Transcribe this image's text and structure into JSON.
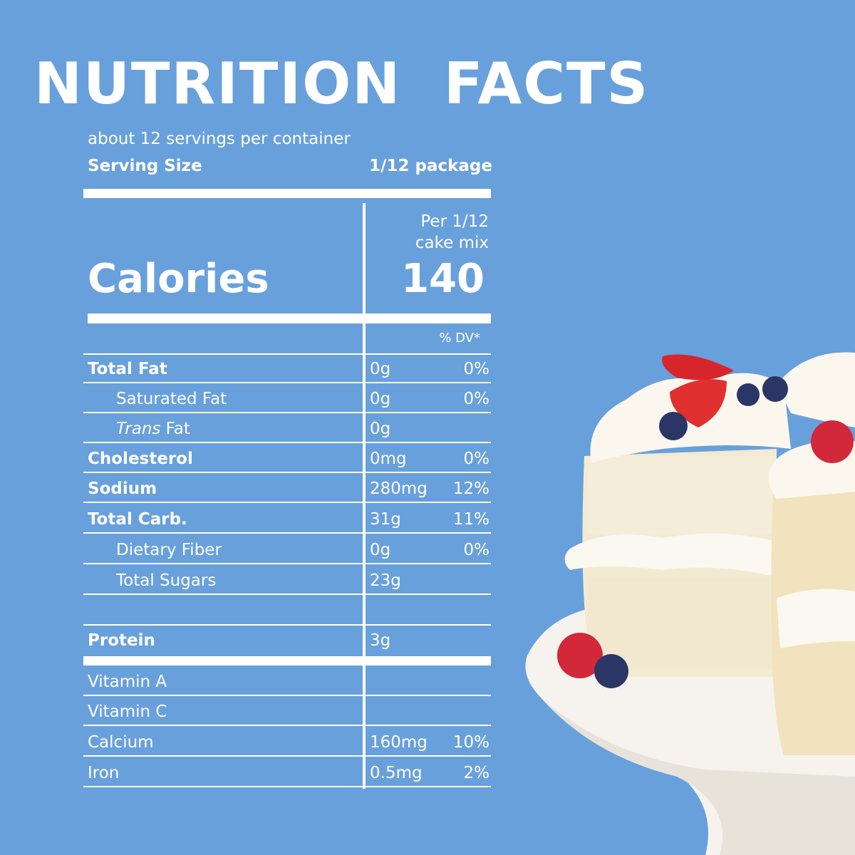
{
  "title": "NUTRITION  FACTS",
  "servings_per_container": "about 12 servings per container",
  "serving_size": {
    "label": "Serving Size",
    "value": "1/12 package"
  },
  "per_label_line1": "Per 1/12",
  "per_label_line2": "cake mix",
  "calories": {
    "label": "Calories",
    "value": "140"
  },
  "dv_header": "% DV*",
  "nutrients": [
    {
      "name": "Total Fat",
      "amount": "0g",
      "dv": "0%",
      "bold": true
    },
    {
      "name": "Saturated Fat",
      "amount": "0g",
      "dv": "0%"
    },
    {
      "name_italic": "Trans",
      "name": " Fat",
      "amount": "0g",
      "dv": ""
    },
    {
      "name": "Cholesterol",
      "amount": "0mg",
      "dv": "0%",
      "bold": true
    },
    {
      "name": "Sodium",
      "amount": "280mg",
      "dv": "12%",
      "bold": true
    },
    {
      "name": "Total Carb.",
      "amount": "31g",
      "dv": "11%",
      "bold": true
    },
    {
      "name": "Dietary Fiber",
      "amount": "0g",
      "dv": "0%"
    },
    {
      "name": "Total Sugars",
      "amount": "23g",
      "dv": ""
    },
    {
      "name": "Protein",
      "amount": "3g",
      "dv": "",
      "bold": true
    }
  ],
  "vitamins": [
    {
      "name": "Vitamin A",
      "amount": "",
      "dv": ""
    },
    {
      "name": "Vitamin C",
      "amount": "",
      "dv": ""
    },
    {
      "name": "Calcium",
      "amount": "160mg",
      "dv": "10%"
    },
    {
      "name": "Iron",
      "amount": "0.5mg",
      "dv": "2%"
    }
  ],
  "colors": {
    "background": "#68a0dc",
    "text": "#ffffff"
  }
}
